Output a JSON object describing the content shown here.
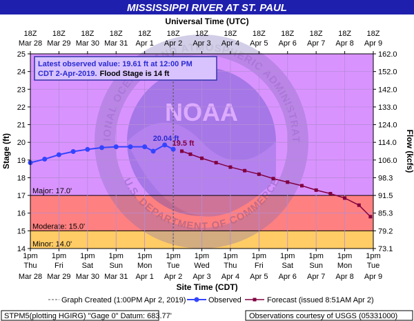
{
  "chart_data": {
    "type": "line",
    "title": "MISSISSIPPI RIVER AT ST. PAUL",
    "top_axis_label": "Universal Time (UTC)",
    "bottom_axis_label": "Site Time (CDT)",
    "ylabel_left": "Stage (ft)",
    "ylabel_right": "Flow (kcfs)",
    "ylim": [
      14,
      25
    ],
    "y_ticks": [
      14,
      15,
      16,
      17,
      18,
      19,
      20,
      21,
      22,
      23,
      24,
      25
    ],
    "flow_ticks": [
      "73.1",
      "79.2",
      "85.3",
      "91.5",
      "98.3",
      "106.0",
      "114.0",
      "124.0",
      "133.0",
      "142.0",
      "152.0",
      "162.0"
    ],
    "x_domain_days": [
      "Mar 28",
      "Apr 9"
    ],
    "top_ticks": [
      {
        "l1": "18Z",
        "l2": "Mar 28"
      },
      {
        "l1": "18Z",
        "l2": "Mar 29"
      },
      {
        "l1": "18Z",
        "l2": "Mar 30"
      },
      {
        "l1": "18Z",
        "l2": "Mar 31"
      },
      {
        "l1": "18Z",
        "l2": "Apr 1"
      },
      {
        "l1": "18Z",
        "l2": "Apr 2"
      },
      {
        "l1": "18Z",
        "l2": "Apr 3"
      },
      {
        "l1": "18Z",
        "l2": "Apr 4"
      },
      {
        "l1": "18Z",
        "l2": "Apr 5"
      },
      {
        "l1": "18Z",
        "l2": "Apr 6"
      },
      {
        "l1": "18Z",
        "l2": "Apr 7"
      },
      {
        "l1": "18Z",
        "l2": "Apr 8"
      },
      {
        "l1": "18Z",
        "l2": "Apr 9"
      }
    ],
    "bottom_ticks": [
      {
        "l1": "1pm",
        "l2": "Thu",
        "l3": "Mar 28"
      },
      {
        "l1": "1pm",
        "l2": "Fri",
        "l3": "Mar 29"
      },
      {
        "l1": "1pm",
        "l2": "Sat",
        "l3": "Mar 30"
      },
      {
        "l1": "1pm",
        "l2": "Sun",
        "l3": "Mar 31"
      },
      {
        "l1": "1pm",
        "l2": "Mon",
        "l3": "Apr 1"
      },
      {
        "l1": "1pm",
        "l2": "Tue",
        "l3": "Apr 2"
      },
      {
        "l1": "1pm",
        "l2": "Wed",
        "l3": "Apr 3"
      },
      {
        "l1": "1pm",
        "l2": "Thu",
        "l3": "Apr 4"
      },
      {
        "l1": "1pm",
        "l2": "Fri",
        "l3": "Apr 5"
      },
      {
        "l1": "1pm",
        "l2": "Sat",
        "l3": "Apr 6"
      },
      {
        "l1": "1pm",
        "l2": "Sun",
        "l3": "Apr 7"
      },
      {
        "l1": "1pm",
        "l2": "Mon",
        "l3": "Apr 8"
      },
      {
        "l1": "1pm",
        "l2": "Tue",
        "l3": "Apr 9"
      }
    ],
    "flood_categories": [
      {
        "label": "Major: 17.0'",
        "from": 17,
        "to": 25,
        "color": "#d993ff"
      },
      {
        "label": "",
        "from": 16,
        "to": 17,
        "color": "#ff8080"
      },
      {
        "label": "Moderate: 15.0'",
        "from": 15,
        "to": 16,
        "color": "#ff8080"
      },
      {
        "label": "Minor: 14.0'",
        "from": 14,
        "to": 15,
        "color": "#ffcc66"
      }
    ],
    "info_line1": "Latest observed value: 19.61 ft at 12:00 PM",
    "info_line2a": "CDT 2-Apr-2019.",
    "info_line2b": "Flood Stage is 14 ft",
    "observed_peak_label": "20.04 ft",
    "forecast_peak_label": "19.5 ft",
    "series": [
      {
        "name": "Observed",
        "color": "#3344ff",
        "x": [
          "Mar 28",
          "Mar 28 12h",
          "Mar 29",
          "Mar 29 12h",
          "Mar 30",
          "Mar 30 12h",
          "Mar 31",
          "Mar 31 12h",
          "Apr 1",
          "Apr 1 12h",
          "Apr 1 23h",
          "Apr 2"
        ],
        "x_days": [
          0,
          0.5,
          1,
          1.5,
          2,
          2.5,
          3,
          3.5,
          4,
          4.3,
          4.7,
          5
        ],
        "y": [
          18.85,
          19.05,
          19.3,
          19.48,
          19.6,
          19.7,
          19.75,
          19.75,
          19.75,
          19.5,
          19.85,
          19.61
        ]
      },
      {
        "name": "Forecast (issued 8:51AM Apr 2)",
        "color": "#800040",
        "x_days": [
          5.3,
          5.6,
          6,
          6.5,
          7,
          7.5,
          8,
          8.5,
          9,
          9.5,
          10,
          10.5,
          11,
          11.5,
          11.9
        ],
        "y": [
          19.5,
          19.33,
          19.1,
          18.85,
          18.6,
          18.4,
          18.2,
          17.95,
          17.75,
          17.55,
          17.3,
          17.1,
          16.85,
          16.45,
          15.8
        ]
      }
    ],
    "graph_created_day": 5,
    "legend": {
      "graph_created": "Graph Created (1:00PM Apr 2, 2019)",
      "observed": "Observed",
      "forecast": "Forecast (issued 8:51AM Apr 2)"
    },
    "footer_left": "STPM5(plotting HGIRG) \"Gage 0\" Datum: 683.77'",
    "footer_right": "Observations courtesy of USGS (05331000)",
    "watermark_text": "NATIONAL OCEANIC AND ATMOSPHERIC ADMINISTRATION",
    "watermark_logo": "NOAA",
    "watermark_bottom": "U.S. DEPARTMENT OF COMMERCE"
  }
}
